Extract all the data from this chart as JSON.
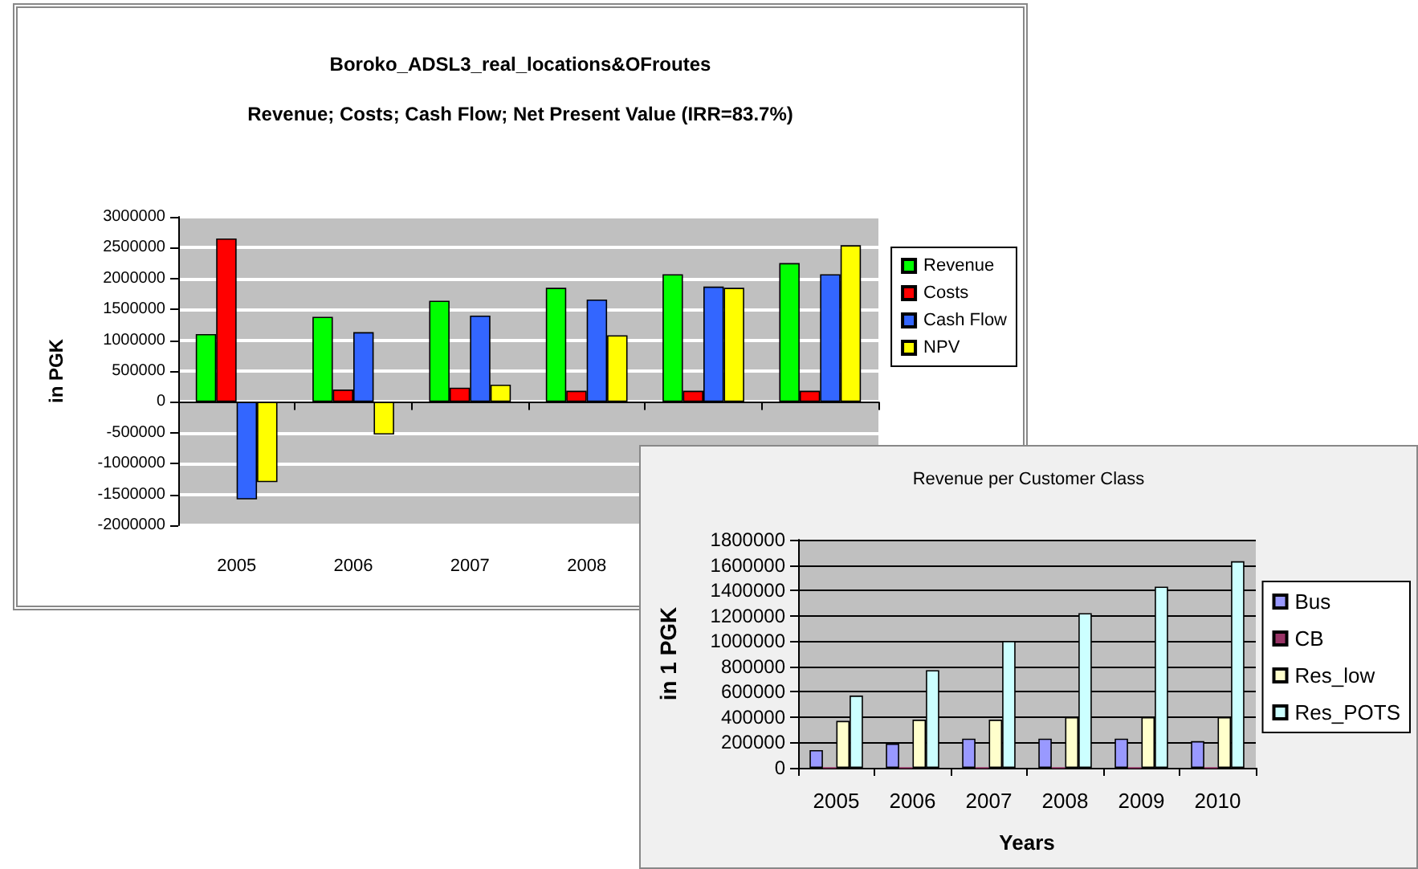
{
  "chart_data": [
    {
      "type": "bar",
      "title": "Boroko_ADSL3_real_locations&OFroutes",
      "subtitle": "Revenue; Costs; Cash Flow; Net Present Value (IRR=83.7%)",
      "ylabel": "in PGK",
      "categories": [
        "2005",
        "2006",
        "2007",
        "2008",
        null,
        null
      ],
      "series": [
        {
          "name": "Revenue",
          "color": "#00ff00",
          "values": [
            1100000,
            1380000,
            1640000,
            1850000,
            2070000,
            2250000
          ]
        },
        {
          "name": "Costs",
          "color": "#ff0000",
          "values": [
            2650000,
            200000,
            230000,
            180000,
            180000,
            180000
          ]
        },
        {
          "name": "Cash Flow",
          "color": "#3366ff",
          "values": [
            -1580000,
            1130000,
            1400000,
            1660000,
            1870000,
            2070000
          ]
        },
        {
          "name": "NPV",
          "color": "#ffff00",
          "values": [
            -1300000,
            -530000,
            280000,
            1080000,
            1850000,
            2540000
          ]
        }
      ],
      "ylim": [
        -2000000,
        3000000
      ],
      "yticks": [
        -2000000,
        -1500000,
        -1000000,
        -500000,
        0,
        500000,
        1000000,
        1500000,
        2000000,
        2500000,
        3000000
      ],
      "grid": "y",
      "legend": "right"
    },
    {
      "type": "bar",
      "title": "Revenue per Customer Class",
      "xlabel": "Years",
      "ylabel": "in 1 PGK",
      "categories": [
        "2005",
        "2006",
        "2007",
        "2008",
        "2009",
        "2010"
      ],
      "series": [
        {
          "name": "Bus",
          "color": "#9999ff",
          "values": [
            140000,
            190000,
            230000,
            230000,
            230000,
            210000
          ]
        },
        {
          "name": "CB",
          "color": "#993366",
          "values": [
            0,
            0,
            0,
            0,
            0,
            0
          ]
        },
        {
          "name": "Res_low",
          "color": "#ffffcc",
          "values": [
            370000,
            380000,
            380000,
            400000,
            400000,
            400000
          ]
        },
        {
          "name": "Res_POTS",
          "color": "#ccffff",
          "values": [
            570000,
            770000,
            1000000,
            1220000,
            1430000,
            1630000
          ]
        }
      ],
      "ylim": [
        0,
        1800000
      ],
      "yticks": [
        0,
        200000,
        400000,
        600000,
        800000,
        1000000,
        1200000,
        1400000,
        1600000,
        1800000
      ],
      "grid": "y",
      "legend": "right"
    }
  ]
}
